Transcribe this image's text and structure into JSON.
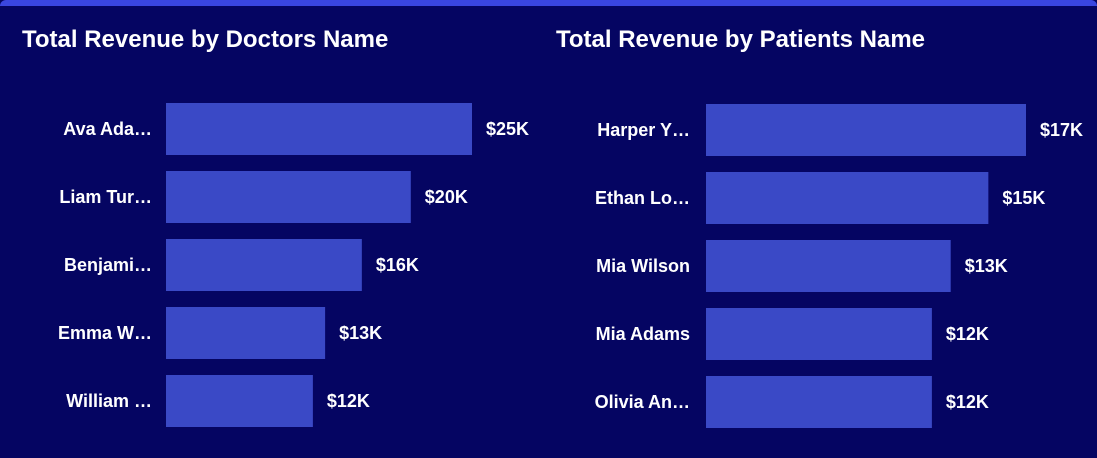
{
  "colors": {
    "background": "#050562",
    "bar": "#3a49c6",
    "text": "#ffffff",
    "top_border": "#3a46e0"
  },
  "chart_data": [
    {
      "type": "bar",
      "orientation": "horizontal",
      "title": "Total Revenue by Doctors Name",
      "categories": [
        "Ava Ada…",
        "Liam Tur…",
        "Benjami…",
        "Emma W…",
        "William …"
      ],
      "values": [
        25,
        20,
        16,
        13,
        12
      ],
      "value_labels": [
        "$25K",
        "$20K",
        "$16K",
        "$13K",
        "$12K"
      ],
      "unit": "$K",
      "xlim": [
        0,
        25
      ],
      "grid": false,
      "legend": "none"
    },
    {
      "type": "bar",
      "orientation": "horizontal",
      "title": "Total Revenue by Patients Name",
      "categories": [
        "Harper Y…",
        "Ethan Lo…",
        "Mia Wilson",
        "Mia Adams",
        "Olivia An…"
      ],
      "values": [
        17,
        15,
        13,
        12,
        12
      ],
      "value_labels": [
        "$17K",
        "$15K",
        "$13K",
        "$12K",
        "$12K"
      ],
      "unit": "$K",
      "xlim": [
        0,
        17
      ],
      "grid": false,
      "legend": "none"
    }
  ]
}
